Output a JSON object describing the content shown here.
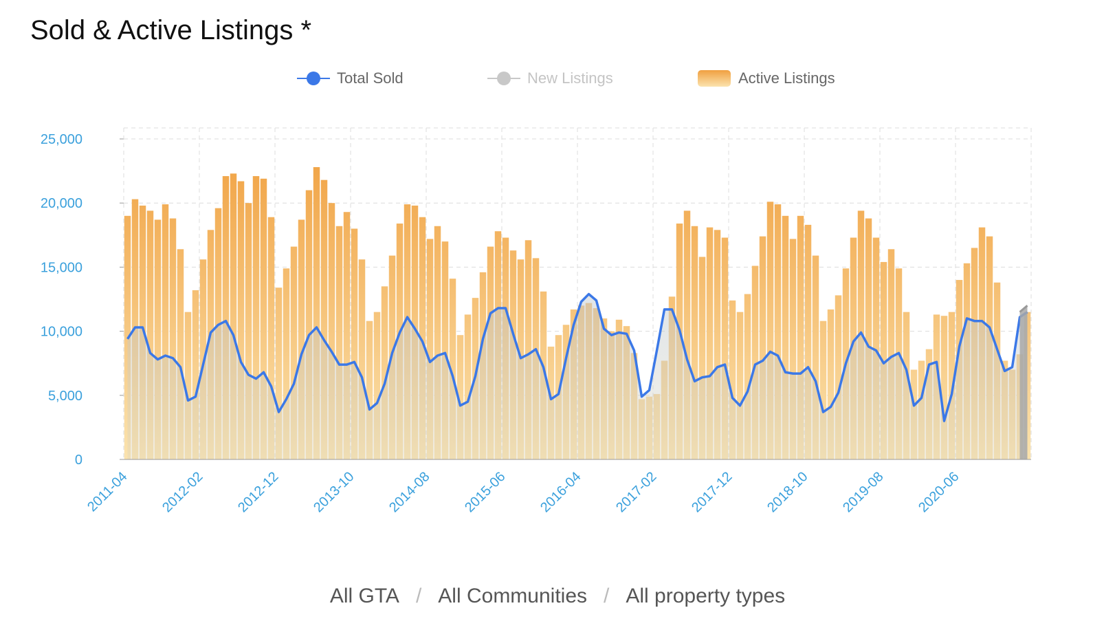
{
  "title": "Sold & Active Listings *",
  "legend": {
    "total_sold": "Total Sold",
    "new_listings": "New Listings",
    "active_listings": "Active Listings"
  },
  "breadcrumb": {
    "region": "All GTA",
    "community": "All Communities",
    "property_type": "All property types",
    "separator": "/"
  },
  "colors": {
    "total_sold": "#3b78e7",
    "new_listings": "#c8c8c8",
    "active_top": "#f0a040",
    "active_bottom": "#fbe3ae",
    "axis_text": "#3aa0dc",
    "grid": "#dcdcdc"
  },
  "chart_data": {
    "type": "bar",
    "title": "Sold & Active Listings *",
    "xlabel": "",
    "ylabel": "",
    "ylim": [
      0,
      25000
    ],
    "y_ticks": [
      "0",
      "5,000",
      "10,000",
      "15,000",
      "20,000",
      "25,000"
    ],
    "x_tick_labels": [
      "2011-04",
      "2012-02",
      "2012-12",
      "2013-10",
      "2014-08",
      "2015-06",
      "2016-04",
      "2017-02",
      "2017-12",
      "2018-10",
      "2019-08",
      "2020-06"
    ],
    "start_month": "2011-04",
    "grid": true,
    "legend_position": "top-center",
    "series": [
      {
        "name": "Active Listings",
        "kind": "bar",
        "values": [
          19000,
          20300,
          19800,
          19400,
          18700,
          19900,
          18800,
          16400,
          11500,
          13200,
          15600,
          17900,
          19600,
          22100,
          22300,
          21700,
          20000,
          22100,
          21900,
          18900,
          13400,
          14900,
          16600,
          18700,
          21000,
          22800,
          21800,
          20000,
          18200,
          19300,
          18000,
          15600,
          10800,
          11500,
          13500,
          15900,
          18400,
          19900,
          19800,
          18900,
          17200,
          18200,
          17000,
          14100,
          9700,
          11300,
          12600,
          14600,
          16600,
          17800,
          17300,
          16300,
          15600,
          17100,
          15700,
          13100,
          8800,
          9700,
          10500,
          11700,
          12000,
          12200,
          11800,
          11000,
          10000,
          10900,
          10400,
          8300,
          4700,
          4900,
          5100,
          7700,
          12700,
          18400,
          19400,
          18200,
          15800,
          18100,
          17900,
          17300,
          12400,
          11500,
          12900,
          15100,
          17400,
          20100,
          19900,
          19000,
          17200,
          19000,
          18300,
          15900,
          10800,
          11700,
          12800,
          14900,
          17300,
          19400,
          18800,
          17300,
          15400,
          16400,
          14900,
          11500,
          7000,
          7700,
          8600,
          11300,
          11200,
          11500,
          14000,
          15300,
          16500,
          18100,
          17400,
          13800,
          7700,
          7000,
          8200,
          11500
        ]
      },
      {
        "name": "Total Sold",
        "kind": "line",
        "values": [
          9400,
          10300,
          10300,
          8300,
          7800,
          8100,
          7900,
          7200,
          4600,
          4900,
          7400,
          9900,
          10500,
          10800,
          9700,
          7600,
          6600,
          6300,
          6800,
          5700,
          3700,
          4700,
          5900,
          8200,
          9700,
          10300,
          9300,
          8400,
          7400,
          7400,
          7600,
          6400,
          3900,
          4400,
          5900,
          8300,
          9900,
          11100,
          10200,
          9200,
          7600,
          8100,
          8300,
          6500,
          4200,
          4500,
          6500,
          9400,
          11400,
          11800,
          11800,
          9800,
          7900,
          8200,
          8600,
          7200,
          4700,
          5100,
          7900,
          10500,
          12300,
          12900,
          12400,
          10200,
          9700,
          9900,
          9800,
          8500,
          4900,
          5400,
          8500,
          11700,
          11700,
          10100,
          7800,
          6100,
          6400,
          6500,
          7200,
          7400,
          4800,
          4200,
          5300,
          7400,
          7700,
          8400,
          8100,
          6800,
          6700,
          6700,
          7200,
          6100,
          3700,
          4100,
          5200,
          7500,
          9200,
          9900,
          8800,
          8500,
          7500,
          8000,
          8300,
          7000,
          4200,
          4800,
          7400,
          7600,
          3000,
          5100,
          8800,
          11000,
          10800,
          10800,
          10300,
          8600,
          6900,
          7200,
          11100,
          11500
        ]
      },
      {
        "name": "New Listings",
        "kind": "line",
        "hidden": true,
        "values": [
          0,
          0,
          0,
          0,
          0,
          0,
          0,
          0,
          0,
          0,
          0,
          0,
          0,
          0,
          0,
          0,
          0,
          0,
          0,
          0,
          0,
          0,
          0,
          0,
          0,
          0,
          0,
          0,
          0,
          0,
          0,
          0,
          0,
          0,
          0,
          0,
          0,
          0,
          0,
          0,
          0,
          0,
          0,
          0,
          0,
          0,
          0,
          0,
          0,
          0,
          0,
          0,
          0,
          0,
          0,
          0,
          0,
          0,
          0,
          0,
          0,
          0,
          0,
          0,
          0,
          0,
          0,
          0,
          0,
          0,
          0,
          0,
          0,
          0,
          0,
          0,
          0,
          0,
          0,
          0,
          0,
          0,
          0,
          0,
          0,
          0,
          0,
          0,
          0,
          0,
          0,
          0,
          0,
          0,
          0,
          0,
          0,
          0,
          0,
          0,
          0,
          0,
          0,
          0,
          0,
          0,
          0,
          0,
          0,
          0,
          0,
          0,
          0,
          0,
          0,
          0,
          0,
          0,
          11500,
          12000
        ]
      }
    ]
  }
}
